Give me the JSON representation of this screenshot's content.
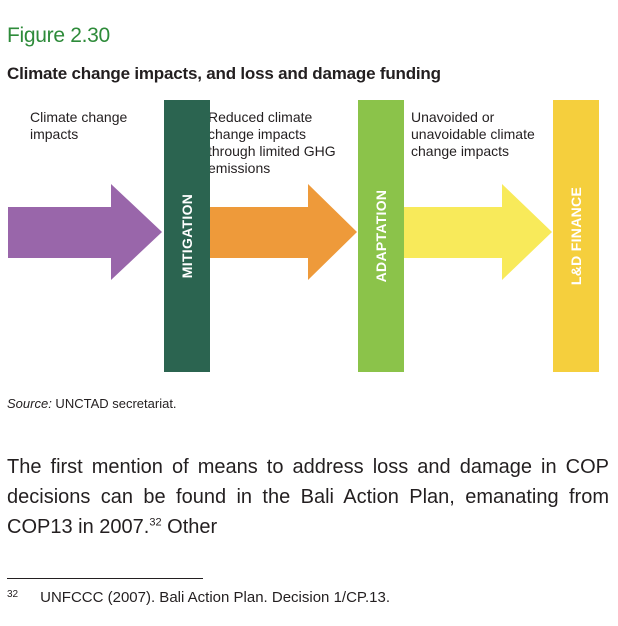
{
  "figure": {
    "label": "Figure 2.30",
    "title": "Climate change impacts, and loss and damage funding"
  },
  "diagram": {
    "captions": [
      "Climate change impacts",
      "Reduced climate change impacts through limited GHG emissions",
      "Unavoided or unavoidable climate change impacts"
    ],
    "bars": [
      {
        "label": "MITIGATION",
        "color": "#2b6450"
      },
      {
        "label": "ADAPTATION",
        "color": "#8bc34a"
      },
      {
        "label": "L&D FINANCE",
        "color": "#f5cf3d"
      }
    ],
    "arrows": [
      {
        "color": "#9966aa"
      },
      {
        "color": "#ee9a3a"
      },
      {
        "color": "#f8ea5a"
      }
    ]
  },
  "source": {
    "prefix": "Source:",
    "text": " UNCTAD secretariat."
  },
  "body": {
    "text": "The first mention of means to address loss and damage in COP decisions can be found in the Bali Action Plan, emanating from COP13 in 2007.",
    "footnote_ref": "32",
    "tail": " Other"
  },
  "footnote": {
    "number": "32",
    "text": "UNFCCC (2007). Bali Action Plan. Decision 1/CP.13."
  }
}
